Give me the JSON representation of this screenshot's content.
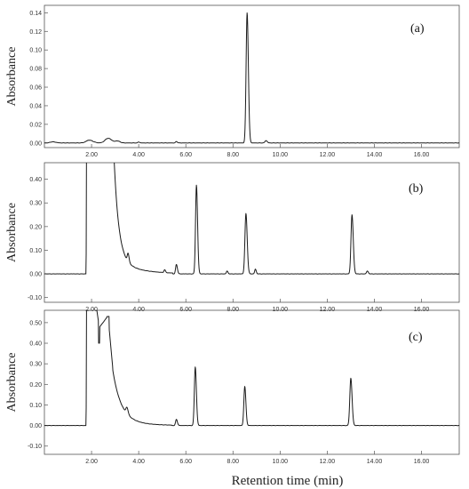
{
  "chart_data": [
    {
      "type": "line",
      "panel_label": "(a)",
      "ylabel": "Absorbance",
      "xlim": [
        0,
        17.6
      ],
      "ylim": [
        -0.005,
        0.148
      ],
      "x_ticks": [
        2,
        4,
        6,
        8,
        10,
        12,
        14,
        16
      ],
      "x_tick_labels": [
        "2.00",
        "4.00",
        "6.00",
        "8.00",
        "10.00",
        "12.00",
        "14.00",
        "16.00"
      ],
      "y_ticks": [
        0.0,
        0.02,
        0.04,
        0.06,
        0.08,
        0.1,
        0.12,
        0.14
      ],
      "y_tick_labels": [
        "0.00",
        "0.02",
        "0.04",
        "0.06",
        "0.08",
        "0.10",
        "0.12",
        "0.14"
      ],
      "baseline": 0.0,
      "peaks": [
        {
          "rt": 0.35,
          "height": 0.0012,
          "width": 0.25
        },
        {
          "rt": 1.9,
          "height": 0.003,
          "width": 0.3
        },
        {
          "rt": 2.7,
          "height": 0.005,
          "width": 0.3
        },
        {
          "rt": 3.1,
          "height": 0.002,
          "width": 0.2
        },
        {
          "rt": 4.0,
          "height": 0.001,
          "width": 0.08
        },
        {
          "rt": 5.6,
          "height": 0.0015,
          "width": 0.08
        },
        {
          "rt": 8.6,
          "height": 0.14,
          "width": 0.1
        },
        {
          "rt": 9.4,
          "height": 0.0025,
          "width": 0.1
        }
      ]
    },
    {
      "type": "line",
      "panel_label": "(b)",
      "ylabel": "Absorbance",
      "xlim": [
        0,
        17.6
      ],
      "ylim": [
        -0.12,
        0.47
      ],
      "x_ticks": [
        2,
        4,
        6,
        8,
        10,
        12,
        14,
        16
      ],
      "x_tick_labels": [
        "2.00",
        "4.00",
        "6.00",
        "8.00",
        "10.00",
        "12.00",
        "14.00",
        "16.00"
      ],
      "y_ticks": [
        -0.1,
        0.0,
        0.1,
        0.2,
        0.3,
        0.4
      ],
      "y_tick_labels": [
        "-0.10",
        "0.00",
        "0.10",
        "0.20",
        "0.30",
        "0.40"
      ],
      "baseline": 0.0,
      "solvent_front": {
        "start": 1.8,
        "end": 2.95,
        "tail_decay": 0.2,
        "tail_level": 0.06
      },
      "peaks": [
        {
          "rt": 3.55,
          "height": 0.035,
          "width": 0.08
        },
        {
          "rt": 5.1,
          "height": 0.012,
          "width": 0.07
        },
        {
          "rt": 5.6,
          "height": 0.04,
          "width": 0.08
        },
        {
          "rt": 6.45,
          "height": 0.375,
          "width": 0.09
        },
        {
          "rt": 7.75,
          "height": 0.012,
          "width": 0.07
        },
        {
          "rt": 8.55,
          "height": 0.255,
          "width": 0.1
        },
        {
          "rt": 8.95,
          "height": 0.02,
          "width": 0.07
        },
        {
          "rt": 13.05,
          "height": 0.25,
          "width": 0.1
        },
        {
          "rt": 13.7,
          "height": 0.012,
          "width": 0.08
        }
      ]
    },
    {
      "type": "line",
      "panel_label": "(c)",
      "ylabel": "Absorbance",
      "xlabel": "Retention time (min)",
      "xlim": [
        0,
        17.6
      ],
      "ylim": [
        -0.14,
        0.56
      ],
      "x_ticks": [
        2,
        4,
        6,
        8,
        10,
        12,
        14,
        16
      ],
      "x_tick_labels": [
        "2.00",
        "4.00",
        "6.00",
        "8.00",
        "10.00",
        "12.00",
        "14.00",
        "16.00"
      ],
      "y_ticks": [
        -0.1,
        0.0,
        0.1,
        0.2,
        0.3,
        0.4,
        0.5
      ],
      "y_tick_labels": [
        "-0.10",
        "0.00",
        "0.10",
        "0.20",
        "0.30",
        "0.40",
        "0.50"
      ],
      "baseline": 0.0,
      "solvent_front": {
        "start": 1.8,
        "end": 2.9,
        "tail_decay": 0.35,
        "tail_level": 0.03,
        "dip_rt": 2.35,
        "dip_value": 0.4,
        "shoulder_rt": 2.7,
        "shoulder_value": 0.53
      },
      "peaks": [
        {
          "rt": 3.5,
          "height": 0.03,
          "width": 0.1
        },
        {
          "rt": 5.6,
          "height": 0.03,
          "width": 0.08
        },
        {
          "rt": 6.4,
          "height": 0.285,
          "width": 0.09
        },
        {
          "rt": 8.5,
          "height": 0.19,
          "width": 0.09
        },
        {
          "rt": 13.0,
          "height": 0.23,
          "width": 0.1
        }
      ]
    }
  ]
}
